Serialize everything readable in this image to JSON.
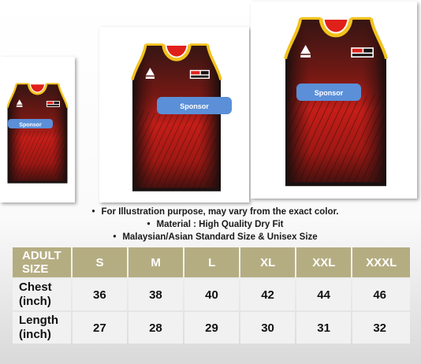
{
  "jerseys": [
    {
      "sponsor_label": "Sponsor"
    },
    {
      "sponsor_label": "Sponsor"
    },
    {
      "sponsor_label": "Sponsor"
    }
  ],
  "notes": [
    "For Illustration purpose, may vary from the exact color.",
    "Material : High Quality Dry Fit",
    "Malaysian/Asian Standard Size & Unisex Size"
  ],
  "size_table": {
    "header_lines": [
      "ADULT",
      "SIZE"
    ],
    "sizes": [
      "S",
      "M",
      "L",
      "XL",
      "XXL",
      "XXXL"
    ],
    "rows": [
      {
        "label_lines": [
          "Chest",
          "(inch)"
        ],
        "values": [
          "36",
          "38",
          "40",
          "42",
          "44",
          "46"
        ]
      },
      {
        "label_lines": [
          "Length",
          "(inch)"
        ],
        "values": [
          "27",
          "28",
          "29",
          "30",
          "31",
          "32"
        ]
      }
    ]
  },
  "colors": {
    "header_bg": "#b5ad82",
    "row_bg": "#f1f1f1",
    "jersey_red": "#e0201a",
    "jersey_black": "#1a1111",
    "trim_yellow": "#f2c21d",
    "sponsor_blue": "#5b8fd8"
  }
}
